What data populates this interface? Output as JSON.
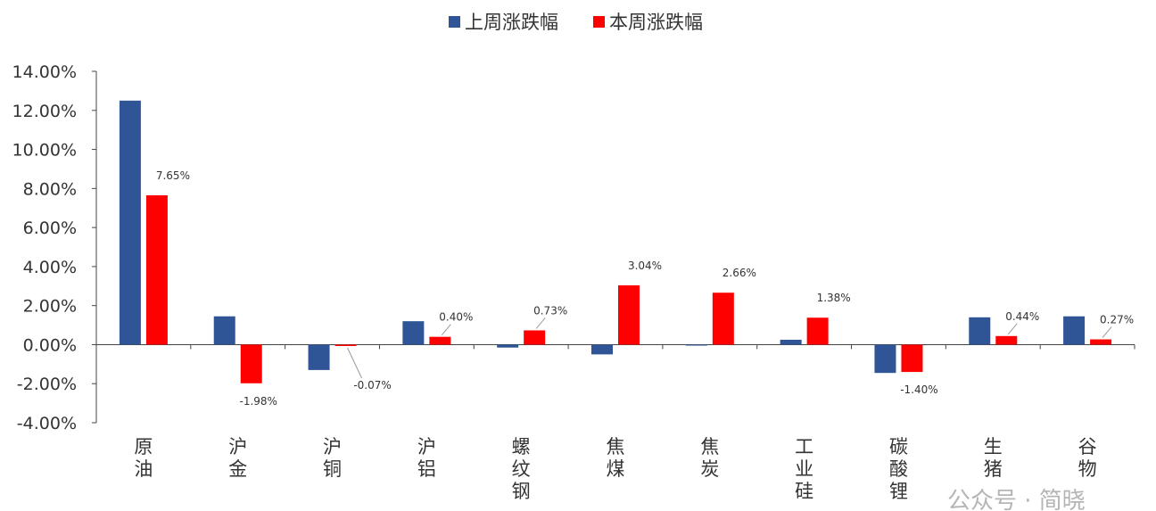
{
  "chart_data": {
    "type": "bar",
    "categories": [
      "原油",
      "沪金",
      "沪铜",
      "沪铝",
      "螺纹钢",
      "焦煤",
      "焦炭",
      "工业硅",
      "碳酸锂",
      "生猪",
      "谷物"
    ],
    "series": [
      {
        "name": "上周涨跌幅",
        "color": "#2F5597",
        "values": [
          12.5,
          1.45,
          -1.3,
          1.2,
          -0.15,
          -0.5,
          -0.05,
          0.25,
          -1.45,
          1.4,
          1.45
        ]
      },
      {
        "name": "本周涨跌幅",
        "color": "#FF0000",
        "values": [
          7.65,
          -1.98,
          -0.07,
          0.4,
          0.73,
          3.04,
          2.66,
          1.38,
          -1.4,
          0.44,
          0.27
        ]
      }
    ],
    "data_labels": [
      "7.65%",
      "-1.98%",
      "-0.07%",
      "0.40%",
      "0.73%",
      "3.04%",
      "2.66%",
      "1.38%",
      "-1.40%",
      "0.44%",
      "0.27%"
    ],
    "yticks": [
      "14.00%",
      "12.00%",
      "10.00%",
      "8.00%",
      "6.00%",
      "4.00%",
      "2.00%",
      "0.00%",
      "-2.00%",
      "-4.00%"
    ],
    "ylim": [
      -4,
      14
    ],
    "legend_position": "top-center",
    "grid": false
  },
  "watermark": "公众号 · 简晓"
}
